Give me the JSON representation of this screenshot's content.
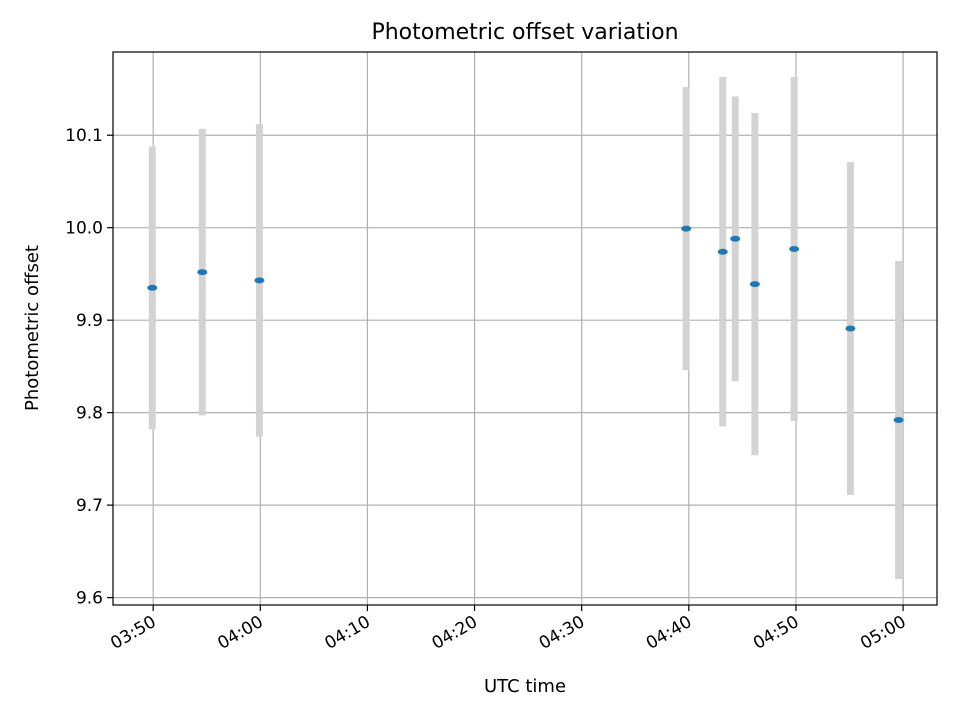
{
  "chart_data": {
    "type": "scatter",
    "title": "Photometric offset variation",
    "xlabel": "UTC time",
    "ylabel": "Photometric offset",
    "x_ticks": [
      "03:50",
      "04:00",
      "04:10",
      "04:20",
      "04:30",
      "04:40",
      "04:50",
      "05:00"
    ],
    "y_ticks": [
      "9.6",
      "9.7",
      "9.8",
      "9.9",
      "10.0",
      "10.1"
    ],
    "xlim": [
      "03:46:15",
      "05:03:10"
    ],
    "ylim": [
      9.592,
      10.19
    ],
    "grid": true,
    "colors": {
      "point": "#1f77b4",
      "errorbar": "#d3d3d3",
      "grid": "#b0b0b0"
    },
    "points": [
      {
        "x": "03:49:55",
        "y": 9.935,
        "yerr": 0.153
      },
      {
        "x": "03:54:35",
        "y": 9.952,
        "yerr": 0.155
      },
      {
        "x": "03:59:55",
        "y": 9.943,
        "yerr": 0.169
      },
      {
        "x": "04:39:45",
        "y": 9.999,
        "yerr": 0.153
      },
      {
        "x": "04:43:10",
        "y": 9.974,
        "yerr": 0.189
      },
      {
        "x": "04:44:20",
        "y": 9.988,
        "yerr": 0.154
      },
      {
        "x": "04:46:10",
        "y": 9.939,
        "yerr": 0.185
      },
      {
        "x": "04:49:50",
        "y": 9.977,
        "yerr": 0.186
      },
      {
        "x": "04:55:05",
        "y": 9.891,
        "yerr": 0.18
      },
      {
        "x": "04:59:35",
        "y": 9.792,
        "yerr": 0.172
      }
    ]
  }
}
